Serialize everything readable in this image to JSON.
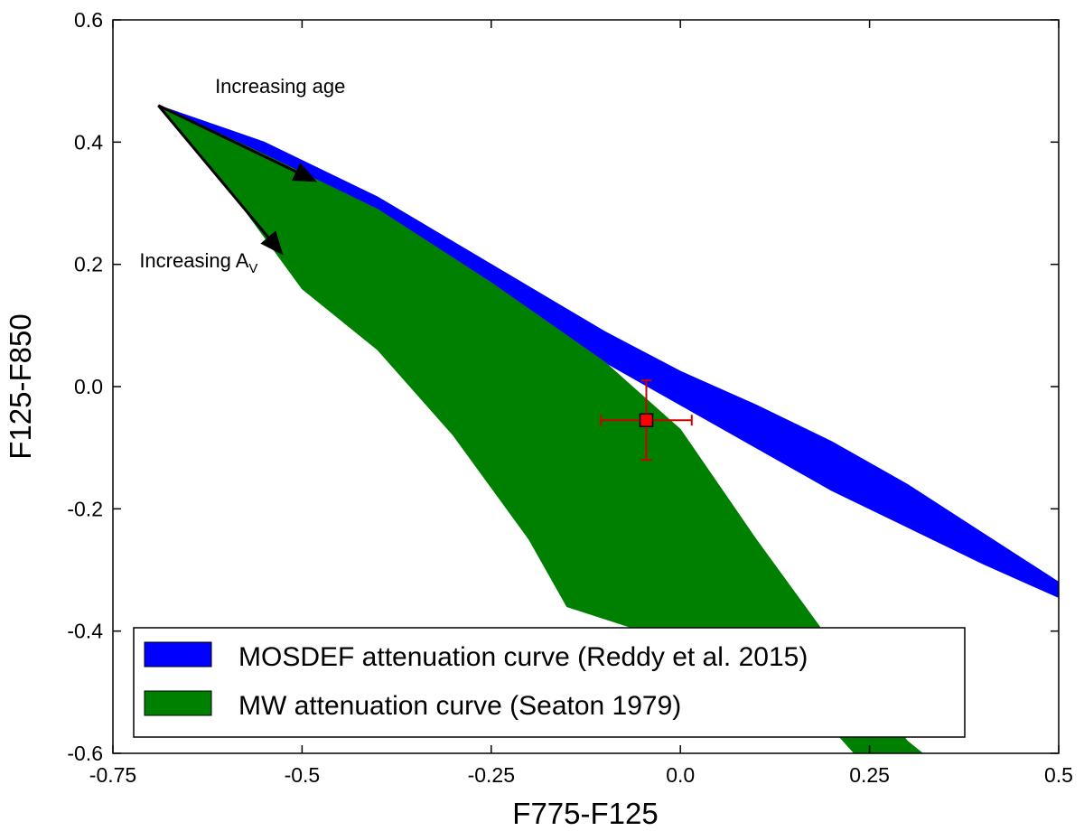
{
  "chart_data": {
    "type": "area",
    "xlabel": "F775-F125",
    "ylabel": "F125-F850",
    "xlim": [
      -0.75,
      0.5
    ],
    "ylim": [
      -0.6,
      0.6
    ],
    "x_ticks": [
      -0.75,
      -0.5,
      -0.25,
      0.0,
      0.25,
      0.5
    ],
    "x_tick_labels": [
      "-0.75",
      "-0.5",
      "-0.25",
      "0.0",
      "0.25",
      "0.5"
    ],
    "y_ticks": [
      -0.6,
      -0.4,
      -0.2,
      0.0,
      0.2,
      0.4,
      0.6
    ],
    "y_tick_labels": [
      "-0.6",
      "-0.4",
      "-0.2",
      "0.0",
      "0.2",
      "0.4",
      "0.6"
    ],
    "grid": false,
    "legend_position": "lower-left",
    "series": [
      {
        "name": "MOSDEF attenuation curve (Reddy et al. 2015)",
        "color": "#0000ff",
        "upper": {
          "x": [
            -0.69,
            -0.55,
            -0.4,
            -0.25,
            -0.1,
            0.0,
            0.1,
            0.2,
            0.3,
            0.4,
            0.5
          ],
          "y": [
            0.46,
            0.4,
            0.31,
            0.2,
            0.09,
            0.025,
            -0.03,
            -0.09,
            -0.16,
            -0.24,
            -0.32
          ]
        },
        "lower": {
          "x": [
            -0.69,
            -0.55,
            -0.4,
            -0.25,
            -0.1,
            0.0,
            0.1,
            0.2,
            0.3,
            0.4,
            0.5
          ],
          "y": [
            0.46,
            0.38,
            0.29,
            0.17,
            0.04,
            -0.03,
            -0.1,
            -0.17,
            -0.23,
            -0.29,
            -0.345
          ]
        }
      },
      {
        "name": "MW attenuation curve (Seaton 1979)",
        "color": "#008000",
        "upper": {
          "x": [
            -0.69,
            -0.55,
            -0.4,
            -0.25,
            -0.1,
            0.0,
            0.1,
            0.2,
            0.3,
            0.32
          ],
          "y": [
            0.46,
            0.38,
            0.29,
            0.17,
            0.04,
            -0.07,
            -0.25,
            -0.42,
            -0.58,
            -0.6
          ]
        },
        "lower": {
          "x": [
            -0.69,
            -0.6,
            -0.5,
            -0.4,
            -0.3,
            -0.2,
            -0.15,
            -0.05,
            0.05,
            0.15,
            0.23
          ],
          "y": [
            0.46,
            0.33,
            0.16,
            0.06,
            -0.08,
            -0.25,
            -0.36,
            -0.4,
            -0.43,
            -0.49,
            -0.6
          ]
        }
      }
    ],
    "point": {
      "x": -0.045,
      "y": -0.055,
      "xerr": 0.06,
      "yerr": 0.065,
      "color": "#ff0000",
      "errorbar_color": "#cc0000"
    },
    "annotations": [
      {
        "id": "age",
        "text": "Increasing age",
        "text_x": -0.615,
        "text_y": 0.48,
        "arrow_from": [
          -0.69,
          0.46
        ],
        "arrow_to": [
          -0.48,
          0.335
        ]
      },
      {
        "id": "av",
        "text": "Increasing A",
        "subscript": "V",
        "text_x": -0.715,
        "text_y": 0.195,
        "arrow_from": [
          -0.69,
          0.46
        ],
        "arrow_to": [
          -0.525,
          0.215
        ]
      }
    ]
  }
}
